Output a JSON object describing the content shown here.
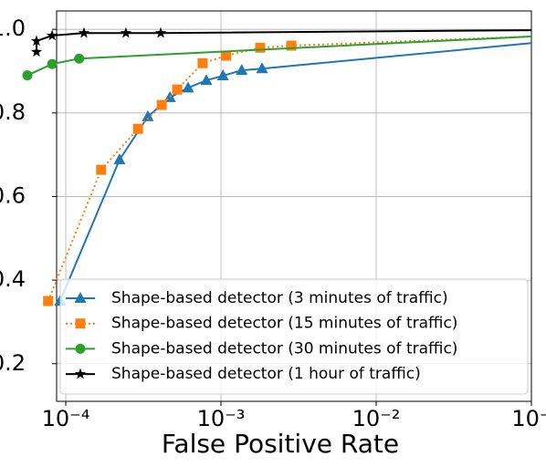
{
  "chart_data": {
    "type": "line",
    "x_label": "False Positive Rate",
    "log_x": true,
    "grid": true,
    "legend": "lower right",
    "xlim": [
      8.73e-05,
      0.1
    ],
    "ylim": [
      0.11,
      1.044
    ],
    "xticks": [
      {
        "value": 0.0001,
        "label": "10⁻⁴"
      },
      {
        "value": 0.001,
        "label": "10⁻³"
      },
      {
        "value": 0.01,
        "label": "10⁻²"
      },
      {
        "value": 0.1,
        "label": "10⁻"
      }
    ],
    "yticks": [
      {
        "value": 0.2,
        "label": "0.2"
      },
      {
        "value": 0.4,
        "label": "0.4"
      },
      {
        "value": 0.6,
        "label": "0.6"
      },
      {
        "value": 0.8,
        "label": "0.8"
      },
      {
        "value": 1.0,
        "label": "1.0"
      }
    ],
    "series": [
      {
        "name": "Shape-based detector (3 minutes of traffic)",
        "color": "#1f77b4",
        "marker": "triangle",
        "linestyle": "solid",
        "x": [
          9.2e-05,
          0.000222,
          0.000338,
          0.000469,
          0.000614,
          0.000805,
          0.00103,
          0.00136,
          0.00184,
          0.1
        ],
        "values": [
          0.35,
          0.688,
          0.791,
          0.837,
          0.86,
          0.878,
          0.889,
          0.902,
          0.906,
          0.967
        ]
      },
      {
        "name": "Shape-based detector (15 minutes of traffic)",
        "color": "#ff7f0e",
        "marker": "square",
        "linestyle": "dotted",
        "x": [
          7.7e-05,
          0.000169,
          0.000292,
          0.000415,
          0.000522,
          0.000762,
          0.00108,
          0.00179,
          0.00284,
          0.1
        ],
        "values": [
          0.35,
          0.664,
          0.762,
          0.819,
          0.856,
          0.919,
          0.937,
          0.956,
          0.961,
          0.983
        ]
      },
      {
        "name": "Shape-based detector (30 minutes of traffic)",
        "color": "#2ca02c",
        "marker": "circle",
        "linestyle": "solid",
        "x": [
          5.66e-05,
          8.17e-05,
          0.000122,
          0.1
        ],
        "values": [
          0.89,
          0.917,
          0.93,
          0.983
        ]
      },
      {
        "name": "Shape-based detector (1 hour of traffic)",
        "color": "#000000",
        "marker": "star",
        "linestyle": "solid",
        "x": [
          6.48e-05,
          6.48e-05,
          8.17e-05,
          0.000131,
          0.000244,
          0.000409,
          0.1
        ],
        "values": [
          0.946,
          0.972,
          0.985,
          0.991,
          0.991,
          0.991,
          0.998
        ]
      }
    ]
  }
}
